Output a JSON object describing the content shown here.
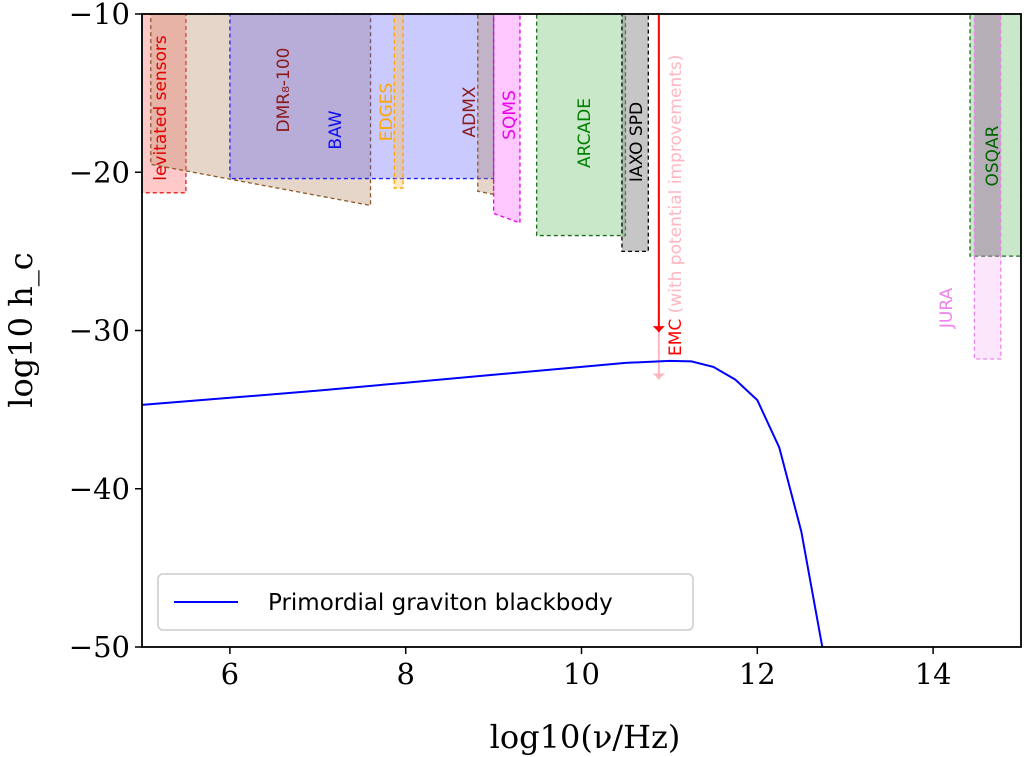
{
  "chart_data": {
    "type": "line",
    "xlabel": "log10(ν/Hz)",
    "ylabel": "log10 h_c",
    "xlim": [
      5,
      15
    ],
    "ylim": [
      -50,
      -10
    ],
    "xticks": [
      "6",
      "8",
      "10",
      "12",
      "14"
    ],
    "yticks": [
      "−10",
      "−20",
      "−30",
      "−40",
      "−50"
    ],
    "grid": false,
    "legend": {
      "placement": "lower-left",
      "entries": [
        "Primordial graviton blackbody"
      ]
    },
    "series": [
      {
        "name": "Primordial graviton blackbody",
        "color": "#0000ff",
        "x": [
          5,
          6,
          7,
          8,
          9,
          10,
          10.5,
          11,
          11.25,
          11.5,
          11.75,
          12,
          12.25,
          12.5,
          12.74
        ],
        "y": [
          -34.7,
          -34.25,
          -33.8,
          -33.3,
          -32.8,
          -32.3,
          -32.05,
          -31.92,
          -31.95,
          -32.3,
          -33.1,
          -34.4,
          -37.4,
          -42.7,
          -50
        ]
      }
    ],
    "regions": [
      {
        "label": "levitated sensors",
        "x": [
          5.0,
          5.5
        ],
        "y_bottom": [
          -21.3,
          -21.3
        ],
        "fill": "#ff4d4d",
        "alpha": 0.3,
        "edge": "#e02020",
        "text_color": "#e00000"
      },
      {
        "label": "DMR₈-100",
        "x": [
          5.1,
          7.6
        ],
        "y_bottom": [
          -19.5,
          -22.1
        ],
        "fill": "#b88a63",
        "alpha": 0.35,
        "edge": "#8b5a2b",
        "text_color": "#8b1a1a"
      },
      {
        "label": "BAW",
        "x": [
          6.0,
          9.0
        ],
        "y_bottom": [
          -20.4,
          -20.4
        ],
        "fill": "#4040ff",
        "alpha": 0.28,
        "edge": "#2020ff",
        "text_color": "#1010ee"
      },
      {
        "label": "EDGES",
        "x": [
          7.87,
          7.97
        ],
        "y_bottom": [
          -21.0,
          -21.0
        ],
        "fill": "#ffc04d",
        "alpha": 0.35,
        "edge": "#ffa500",
        "text_color": "#ffa500"
      },
      {
        "label": "ADMX",
        "x": [
          8.82,
          9.0
        ],
        "y_bottom": [
          -21.2,
          -21.4
        ],
        "fill": "#b88a63",
        "alpha": 0.35,
        "edge": "#8b5a2b",
        "text_color": "#8b1a1a"
      },
      {
        "label": "SQMS",
        "x": [
          9.0,
          9.3
        ],
        "y_bottom": [
          -22.6,
          -23.2
        ],
        "fill": "#ff44ff",
        "alpha": 0.3,
        "edge": "#ee00ee",
        "text_color": "#ee00ee"
      },
      {
        "label": "ARCADE",
        "x": [
          9.49,
          10.5
        ],
        "y_bottom": [
          -24.0,
          -24.0
        ],
        "fill": "#3cae3c",
        "alpha": 0.28,
        "edge": "#1e6e1e",
        "text_color": "#008000"
      },
      {
        "label": "IAXO SPD",
        "x": [
          10.46,
          10.76
        ],
        "y_bottom": [
          -25.0,
          -25.0
        ],
        "fill": "#808080",
        "alpha": 0.45,
        "edge": "#000000",
        "text_color": "#000000"
      },
      {
        "label": "OSQAR",
        "x": [
          14.42,
          15.0
        ],
        "y_bottom": [
          -25.3,
          -25.3
        ],
        "fill": "#3cae3c",
        "alpha": 0.28,
        "edge": "#1e6e1e",
        "text_color": "#006400"
      },
      {
        "label": "",
        "x": [
          14.47,
          14.77
        ],
        "y_bottom": [
          -25.3,
          -25.3
        ],
        "fill": "#808080",
        "alpha": 0.45,
        "edge": "none",
        "text_color": "#000000"
      },
      {
        "label": "JURA",
        "x": [
          14.47,
          14.77
        ],
        "y_bottom": [
          -31.8,
          -31.8
        ],
        "fill": "#ee82ee",
        "alpha": 0.2,
        "edge": "#ee82ee",
        "text_color": "#ee82ee"
      }
    ],
    "emc": {
      "label": "EMC",
      "note": "(with potential improvements)",
      "x": 10.88,
      "limit": -30.1,
      "improved_limit": -33.1,
      "color": "#ff0000",
      "improved_color": "#ffb6c1"
    }
  }
}
